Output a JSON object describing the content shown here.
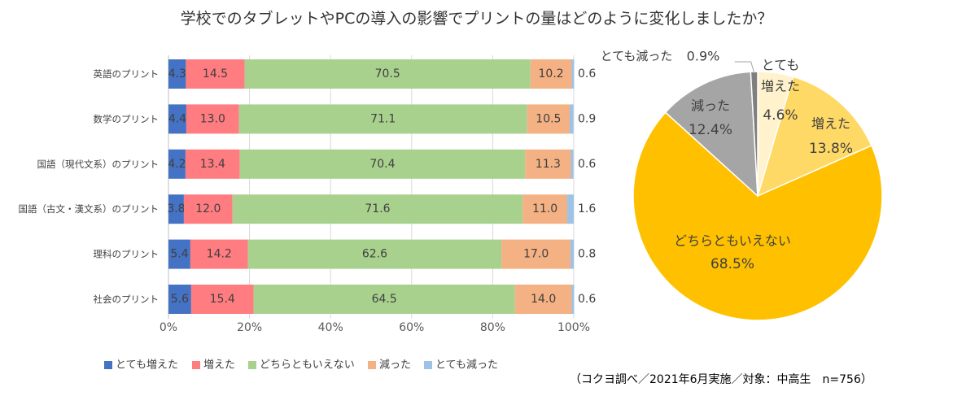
{
  "title": "学校でのタブレットやPCの導入の影響でプリントの量はどのように変化しましたか？",
  "source": "（コクヨ調べ／2021年6月実施／対象：中高生　n=756）",
  "chart_data": [
    {
      "type": "bar",
      "orientation": "horizontal-stacked-100",
      "categories": [
        "英語のプリント",
        "数学のプリント",
        "国語（現代文系）のプリント",
        "国語（古文・漢文系）のプリント",
        "理科のプリント",
        "社会のプリント"
      ],
      "series": [
        {
          "name": "とても増えた",
          "color": "#4472C4",
          "values": [
            4.3,
            4.4,
            4.2,
            3.8,
            5.4,
            5.6
          ]
        },
        {
          "name": "増えた",
          "color": "#FF7C80",
          "values": [
            14.5,
            13.0,
            13.4,
            12.0,
            14.2,
            15.4
          ]
        },
        {
          "name": "どちらともいえない",
          "color": "#A9D18E",
          "values": [
            70.5,
            71.1,
            70.4,
            71.6,
            62.6,
            64.5
          ]
        },
        {
          "name": "減った",
          "color": "#F4B183",
          "values": [
            10.2,
            10.5,
            11.3,
            11.0,
            17.0,
            14.0
          ]
        },
        {
          "name": "とても減った",
          "color": "#9DC3E6",
          "values": [
            0.6,
            0.9,
            0.6,
            1.6,
            0.8,
            0.6
          ]
        }
      ],
      "value_labels": [
        [
          "4.3",
          "14.5",
          "70.5",
          "10.2",
          "0.6"
        ],
        [
          "4.4",
          "13.0",
          "71.1",
          "10.5",
          "0.9"
        ],
        [
          "4.2",
          "13.4",
          "70.4",
          "11.3",
          "0.6"
        ],
        [
          "3.8",
          "12.0",
          "71.6",
          "11.0",
          "1.6"
        ],
        [
          "5.4",
          "14.2",
          "62.6",
          "17.0",
          "0.8"
        ],
        [
          "5.6",
          "15.4",
          "64.5",
          "14.0",
          "0.6"
        ]
      ],
      "x_ticks": [
        "0%",
        "20%",
        "40%",
        "60%",
        "80%",
        "100%"
      ],
      "xlim": [
        0,
        100
      ],
      "legend_position": "bottom"
    },
    {
      "type": "pie",
      "start": "top, clockwise",
      "slices": [
        {
          "label": "とても増えた",
          "label_lines": [
            "とても",
            "増えた"
          ],
          "value": 4.6,
          "value_label": "4.6%",
          "color": "#FFF2CC"
        },
        {
          "label": "増えた",
          "label_lines": [
            "増えた"
          ],
          "value": 13.8,
          "value_label": "13.8%",
          "color": "#FFD966"
        },
        {
          "label": "どちらともいえない",
          "label_lines": [
            "どちらともいえない"
          ],
          "value": 68.5,
          "value_label": "68.5%",
          "color": "#FFC000"
        },
        {
          "label": "減った",
          "label_lines": [
            "減った"
          ],
          "value": 12.4,
          "value_label": "12.4%",
          "color": "#A5A5A5"
        },
        {
          "label": "とても減った",
          "label_lines": [
            "とても減った"
          ],
          "value": 0.9,
          "value_label": "0.9%",
          "color": "#7F7F7F"
        }
      ]
    }
  ]
}
